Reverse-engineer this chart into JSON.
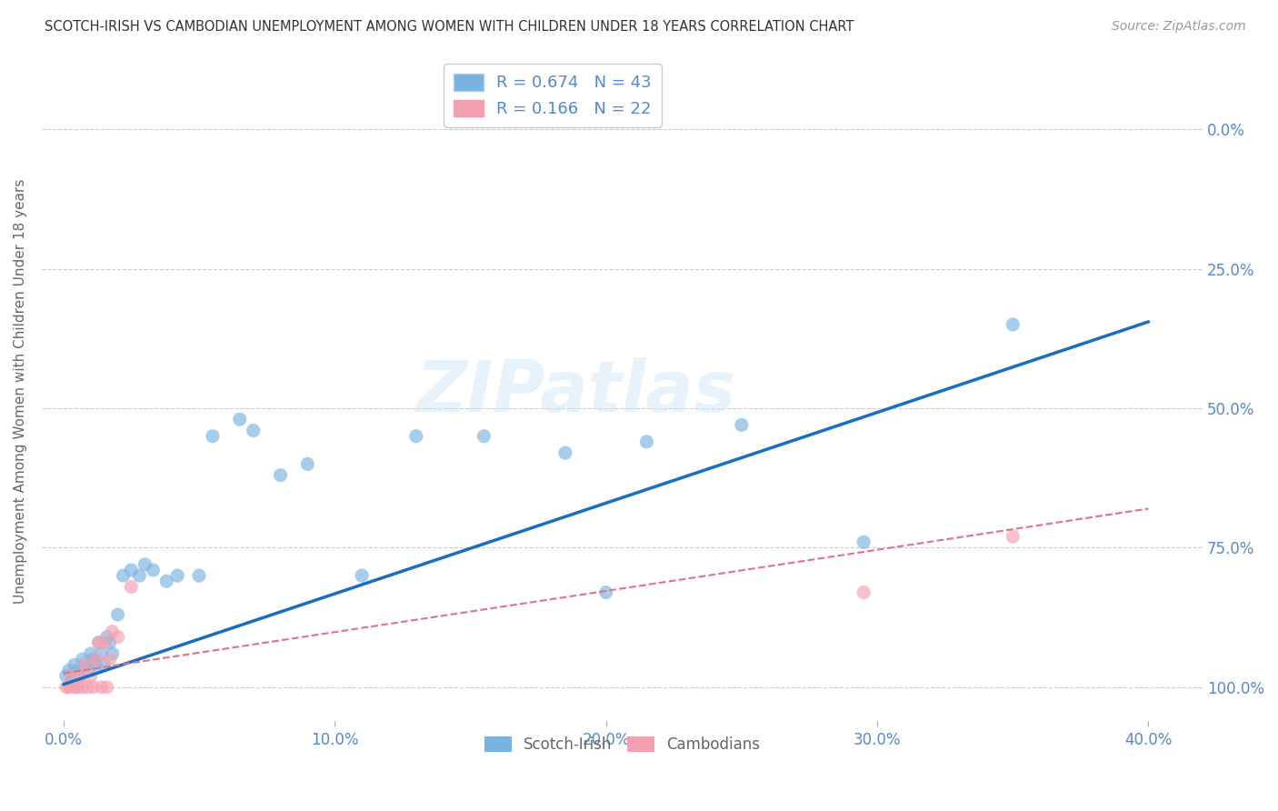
{
  "title": "SCOTCH-IRISH VS CAMBODIAN UNEMPLOYMENT AMONG WOMEN WITH CHILDREN UNDER 18 YEARS CORRELATION CHART",
  "source": "Source: ZipAtlas.com",
  "ylabel": "Unemployment Among Women with Children Under 18 years",
  "x_tick_labels": [
    "0.0%",
    "10.0%",
    "20.0%",
    "30.0%",
    "40.0%"
  ],
  "x_tick_values": [
    0.0,
    0.1,
    0.2,
    0.3,
    0.4
  ],
  "y_tick_labels_right": [
    "100.0%",
    "75.0%",
    "50.0%",
    "25.0%",
    "0.0%"
  ],
  "y_tick_values_right": [
    1.0,
    0.75,
    0.5,
    0.25,
    0.0
  ],
  "y_tick_values": [
    0.0,
    0.25,
    0.5,
    0.75,
    1.0
  ],
  "scotch_irish_color": "#7ab3e0",
  "cambodian_color": "#f4a0b0",
  "scotch_irish_line_color": "#1a6fbd",
  "cambodian_line_color": "#e07090",
  "background_color": "#ffffff",
  "grid_color": "#cccccc",
  "title_color": "#333333",
  "tick_label_color_blue": "#5588cc",
  "watermark_text": "ZIPatlas",
  "si_x": [
    0.001,
    0.002,
    0.003,
    0.004,
    0.005,
    0.006,
    0.007,
    0.008,
    0.009,
    0.01,
    0.011,
    0.012,
    0.013,
    0.014,
    0.015,
    0.016,
    0.017,
    0.018,
    0.02,
    0.022,
    0.025,
    0.028,
    0.03,
    0.033,
    0.038,
    0.042,
    0.05,
    0.055,
    0.065,
    0.07,
    0.08,
    0.09,
    0.11,
    0.13,
    0.155,
    0.185,
    0.2,
    0.215,
    0.25,
    0.295,
    0.35
  ],
  "si_y": [
    0.02,
    0.03,
    0.01,
    0.04,
    0.03,
    0.02,
    0.05,
    0.04,
    0.03,
    0.06,
    0.05,
    0.04,
    0.08,
    0.06,
    0.04,
    0.09,
    0.08,
    0.06,
    0.13,
    0.2,
    0.21,
    0.2,
    0.22,
    0.21,
    0.19,
    0.2,
    0.2,
    0.45,
    0.48,
    0.46,
    0.38,
    0.4,
    0.2,
    0.45,
    0.45,
    0.42,
    0.17,
    0.44,
    0.47,
    0.26,
    0.65
  ],
  "cam_x": [
    0.001,
    0.002,
    0.003,
    0.004,
    0.005,
    0.006,
    0.007,
    0.008,
    0.009,
    0.01,
    0.011,
    0.012,
    0.013,
    0.014,
    0.015,
    0.016,
    0.017,
    0.018,
    0.02,
    0.025,
    0.295,
    0.35
  ],
  "cam_y": [
    0.0,
    0.0,
    0.02,
    0.0,
    0.0,
    0.02,
    0.0,
    0.04,
    0.0,
    0.02,
    0.0,
    0.05,
    0.08,
    0.0,
    0.08,
    0.0,
    0.05,
    0.1,
    0.09,
    0.18,
    0.17,
    0.27
  ],
  "si_line_x0": 0.0,
  "si_line_y0": 0.005,
  "si_line_x1": 0.4,
  "si_line_y1": 0.655,
  "cam_line_x0": 0.0,
  "cam_line_y0": 0.025,
  "cam_line_x1": 0.4,
  "cam_line_y1": 0.32
}
